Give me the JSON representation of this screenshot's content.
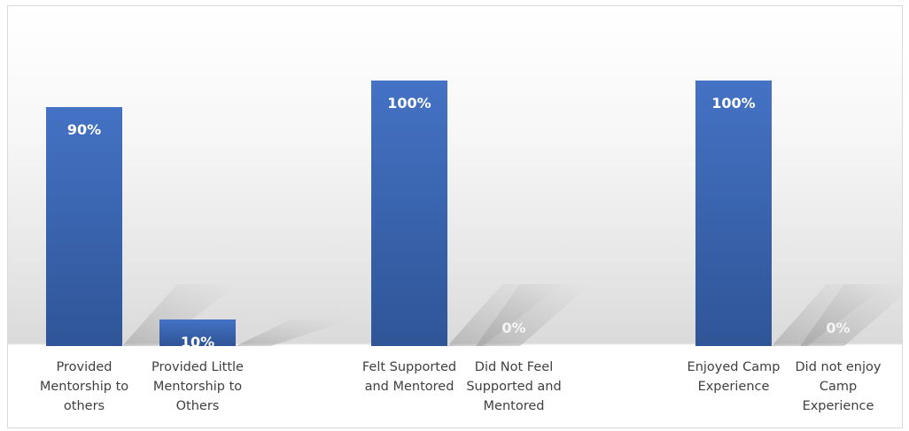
{
  "chart_data": {
    "type": "bar",
    "categories": [
      "Provided Mentorship to others",
      "Provided Little Mentorship to Others",
      "Felt Supported and Mentored",
      "Did Not Feel Supported and Mentored",
      "Enjoyed Camp Experience",
      "Did not enjoy Camp Experience"
    ],
    "category_lines": [
      [
        "Provided",
        "Mentorship to",
        "others"
      ],
      [
        "Provided Little",
        "Mentorship to",
        "Others"
      ],
      [
        "Felt Supported",
        "and Mentored"
      ],
      [
        "Did Not Feel",
        "Supported and",
        "Mentored"
      ],
      [
        "Enjoyed Camp",
        "Experience"
      ],
      [
        "Did not enjoy",
        "Camp",
        "Experience"
      ]
    ],
    "values": [
      90,
      10,
      100,
      0,
      100,
      0
    ],
    "data_labels": [
      "90%",
      "10%",
      "100%",
      "0%",
      "100%",
      "0%"
    ],
    "ylim": [
      0,
      100
    ],
    "grid": false,
    "legend": "none",
    "title": "",
    "xlabel": "",
    "ylabel": "",
    "colors": {
      "bar": "#4472c4",
      "bar_dark": "#2f5597",
      "label": "#ffffff",
      "axis_text": "#404040"
    }
  }
}
